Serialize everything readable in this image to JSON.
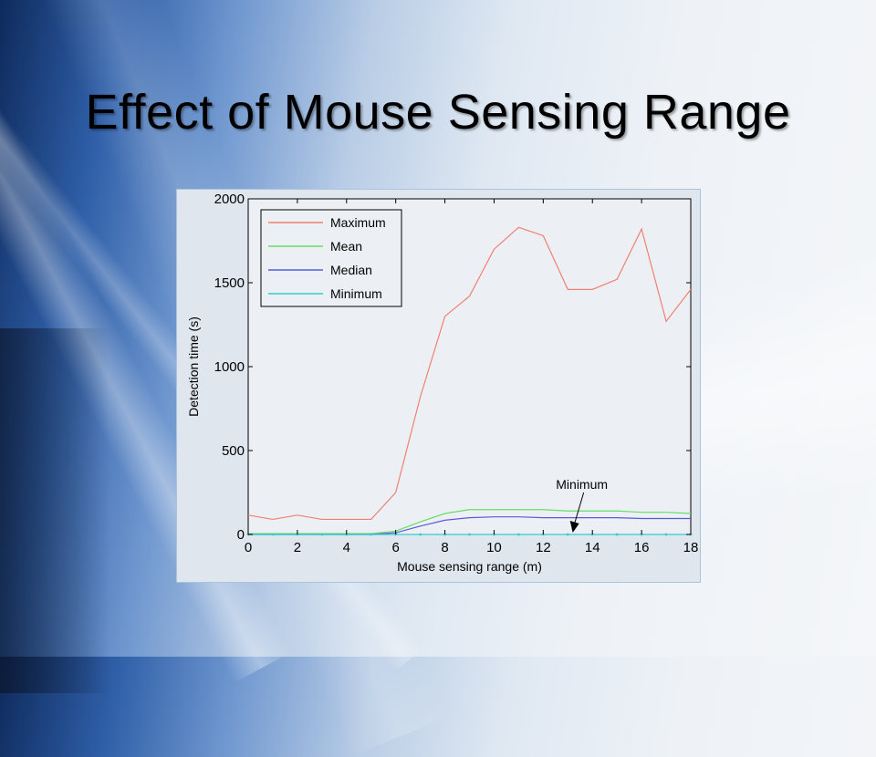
{
  "slide": {
    "title": "Effect of Mouse Sensing Range"
  },
  "colors": {
    "maximum": "#f08070",
    "mean": "#66dd66",
    "median": "#5a5ad8",
    "minimum": "#33cccc"
  },
  "chart_data": {
    "type": "line",
    "xlabel": "Mouse sensing range (m)",
    "ylabel": "Detection time (s)",
    "xlim": [
      0,
      18
    ],
    "ylim": [
      0,
      2000
    ],
    "xticks": [
      0,
      2,
      4,
      6,
      8,
      10,
      12,
      14,
      16,
      18
    ],
    "yticks": [
      0,
      500,
      1000,
      1500,
      2000
    ],
    "legend_placement": "top-left",
    "grid": false,
    "x": [
      0,
      1,
      2,
      3,
      4,
      5,
      6,
      7,
      8,
      9,
      10,
      11,
      12,
      13,
      14,
      15,
      16,
      17,
      18
    ],
    "series": [
      {
        "name": "Maximum",
        "color": "#f08070",
        "values": [
          115,
          90,
          115,
          90,
          90,
          90,
          250,
          820,
          1300,
          1420,
          1700,
          1830,
          1780,
          1460,
          1460,
          1520,
          1820,
          1270,
          1460
        ]
      },
      {
        "name": "Mean",
        "color": "#66dd66",
        "values": [
          5,
          5,
          5,
          5,
          5,
          5,
          20,
          75,
          125,
          148,
          148,
          148,
          148,
          140,
          140,
          140,
          132,
          132,
          125
        ]
      },
      {
        "name": "Median",
        "color": "#5a5ad8",
        "values": [
          0,
          0,
          0,
          0,
          0,
          0,
          10,
          50,
          85,
          100,
          105,
          105,
          100,
          100,
          100,
          100,
          95,
          95,
          95
        ]
      },
      {
        "name": "Minimum",
        "color": "#33cccc",
        "values": [
          0,
          0,
          0,
          0,
          0,
          0,
          0,
          0,
          0,
          0,
          0,
          0,
          0,
          0,
          0,
          0,
          0,
          0,
          0
        ]
      }
    ],
    "annotations": [
      {
        "text": "Minimum",
        "x": 13.2,
        "y": 0
      }
    ]
  }
}
